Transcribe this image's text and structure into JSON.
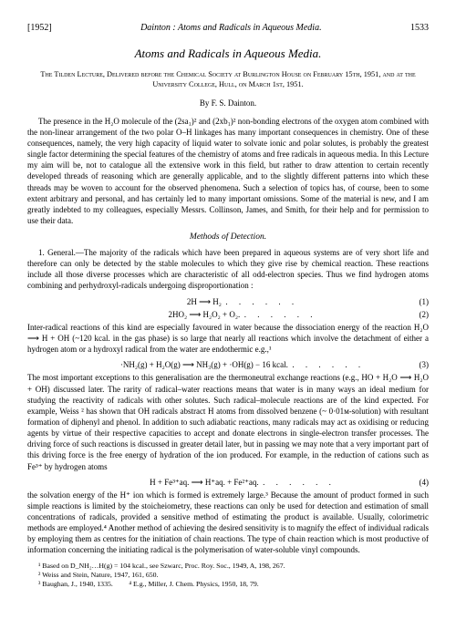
{
  "header": {
    "year": "[1952]",
    "running_title": "Dainton : Atoms and Radicals in Aqueous Media.",
    "page_num": "1533"
  },
  "title": "Atoms and Radicals in Aqueous Media.",
  "subtitle": "The Tilden Lecture, Delivered before the Chemical Society at Burlington House on February 15th, 1951, and at the University College, Hull, on March 1st, 1951.",
  "author": "By F. S. Dainton.",
  "intro": "The presence in the H₂O molecule of the (2sa₁)² and (2xb₁)² non-bonding electrons of the oxygen atom combined with the non-linear arrangement of the two polar O–H linkages has many important consequences in chemistry. One of these consequences, namely, the very high capacity of liquid water to solvate ionic and polar solutes, is probably the greatest single factor determining the special features of the chemistry of atoms and free radicals in aqueous media. In this Lecture my aim will be, not to catalogue all the extensive work in this field, but rather to draw attention to certain recently developed threads of reasoning which are generally applicable, and to the slightly different patterns into which these threads may be woven to account for the observed phenomena. Such a selection of topics has, of course, been to some extent arbitrary and personal, and has certainly led to many important omissions. Some of the material is new, and I am greatly indebted to my colleagues, especially Messrs. Collinson, James, and Smith, for their help and for permission to use their data.",
  "section_heading": "Methods of Detection.",
  "para_general": "1. General.—The majority of the radicals which have been prepared in aqueous systems are of very short life and therefore can only be detected by the stable molecules to which they give rise by chemical reaction. These reactions include all those diverse processes which are characteristic of all odd-electron species. Thus we find hydrogen atoms combining and perhydroxyl-radicals undergoing disproportionation :",
  "equations": {
    "eq1": "2H ⟶ H₂",
    "eq1_num": "(1)",
    "eq2": "2HO₂ ⟶ H₂O₂ + O₂.",
    "eq2_num": "(2)",
    "eq3": "·NH₂(g) + H₂O(g) ⟶ NH₃(g) + ·OH(g) − 16 kcal.",
    "eq3_num": "(3)",
    "eq4": "H + Fe³⁺aq. ⟶ H⁺aq. + Fe²⁺aq.",
    "eq4_num": "(4)"
  },
  "para_inter": "Inter-radical reactions of this kind are especially favoured in water because the dissociation energy of the reaction H₂O ⟶ H + OH (~120 kcal. in the gas phase) is so large that nearly all reactions which involve the detachment of either a hydrogen atom or a hydroxyl radical from the water are endothermic e.g.,¹",
  "para_exceptions": "The most important exceptions to this generalisation are the thermoneutral exchange reactions (e.g., HO + H₂O ⟶ H₂O + OH) discussed later. The rarity of radical–water reactions means that water is in many ways an ideal medium for studying the reactivity of radicals with other solutes. Such radical–molecule reactions are of the kind expected. For example, Weiss ² has shown that OH radicals abstract H atoms from dissolved benzene (~ 0·01ᴍ-solution) with resultant formation of diphenyl and phenol. In addition to such adiabatic reactions, many radicals may act as oxidising or reducing agents by virtue of their respective capacities to accept and donate electrons in single-electron transfer processes. The driving force of such reactions is discussed in greater detail later, but in passing we may note that a very important part of this driving force is the free energy of hydration of the ion produced. For example, in the reduction of cations such as Fe³⁺ by hydrogen atoms",
  "para_solvation": "the solvation energy of the H⁺ ion which is formed is extremely large.³ Because the amount of product formed in such simple reactions is limited by the stoicheiometry, these reactions can only be used for detection and estimation of small concentrations of radicals, provided a sensitive method of estimating the product is available. Usually, colorimetric methods are employed.⁴ Another method of achieving the desired sensitivity is to magnify the effect of individual radicals by employing them as centres for the initiation of chain reactions. The type of chain reaction which is most productive of information concerning the initiating radical is the polymerisation of water-soluble vinyl compounds.",
  "footnotes": {
    "fn1": "¹ Based on D_NH₂…H(g) = 104 kcal., see Szwarc, Proc. Roy. Soc., 1949, A, 198, 267.",
    "fn2": "² Weiss and Stein, Nature, 1947, 161, 650.",
    "fn3": "³ Baughan, J., 1940, 1335.",
    "fn4": "⁴ E.g., Miller, J. Chem. Physics, 1950, 18, 79."
  },
  "dots": ". . . . . ."
}
